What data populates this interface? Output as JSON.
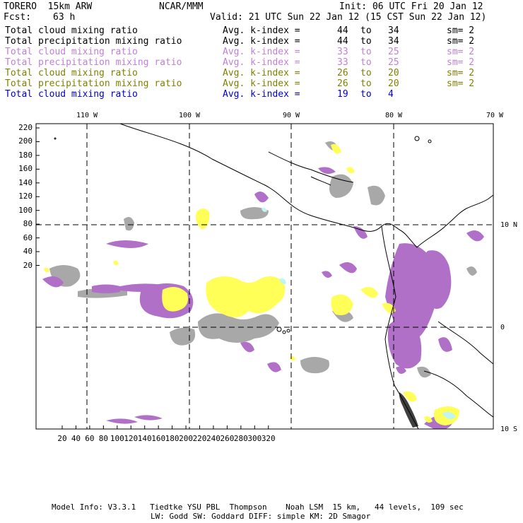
{
  "header": {
    "model": "TORERO  15km ARW",
    "org": "NCAR/MMM",
    "init": "Init: 06 UTC Fri 20 Jan 12",
    "fcst_label": "Fcst:",
    "fcst_value": "63 h",
    "valid": "Valid: 21 UTC Sun 22 Jan 12 (15 CST Sun 22 Jan 12)"
  },
  "legend": [
    {
      "field": "Total cloud mixing ratio",
      "stat": "Avg. k-index =",
      "from": "44",
      "to_word": "to",
      "to": "34",
      "sm": "sm= 2",
      "color": "#000000"
    },
    {
      "field": "Total precipitation mixing ratio",
      "stat": "Avg. k-index =",
      "from": "44",
      "to_word": "to",
      "to": "34",
      "sm": "sm= 2",
      "color": "#000000"
    },
    {
      "field": "Total cloud mixing ratio",
      "stat": "Avg. k-index =",
      "from": "33",
      "to_word": "to",
      "to": "25",
      "sm": "sm= 2",
      "color": "#c080d8"
    },
    {
      "field": "Total precipitation mixing ratio",
      "stat": "Avg. k-index =",
      "from": "33",
      "to_word": "to",
      "to": "25",
      "sm": "sm= 2",
      "color": "#c080d8"
    },
    {
      "field": "Total cloud mixing ratio",
      "stat": "Avg. k-index =",
      "from": "26",
      "to_word": "to",
      "to": "20",
      "sm": "sm= 2",
      "color": "#808000"
    },
    {
      "field": "Total precipitation mixing ratio",
      "stat": "Avg. k-index =",
      "from": "26",
      "to_word": "to",
      "to": "20",
      "sm": "sm= 2",
      "color": "#808000"
    },
    {
      "field": "Total cloud mixing ratio",
      "stat": "Avg. k-index =",
      "from": "19",
      "to_word": "to",
      "to": "4",
      "sm": "",
      "color": "#0000d0"
    }
  ],
  "map": {
    "lon_labels": [
      "110 W",
      "100 W",
      "90 W",
      "80 W",
      "70 W"
    ],
    "lat_labels": [
      "10 N",
      "0",
      "10 S"
    ],
    "y_ticks": [
      "220",
      "200",
      "180",
      "160",
      "140",
      "120",
      "100",
      "80",
      "60",
      "40",
      "20"
    ],
    "x_ticks": [
      "20",
      "40",
      "60",
      "80",
      "100",
      "120",
      "140",
      "160",
      "180",
      "200",
      "220",
      "240",
      "260",
      "280",
      "300",
      "320"
    ],
    "colors": {
      "grey": "#a8a8a8",
      "purple": "#b070c8",
      "yellow": "#ffff58",
      "cyan": "#bff5f5",
      "dark": "#404040"
    }
  },
  "footer": {
    "line1": "Model Info: V3.3.1   Tiedtke YSU PBL  Thompson    Noah LSM  15 km,   44 levels,  109 sec",
    "line2": "LW: Godd SW: Goddard DIFF: simple KM: 2D Smagor"
  }
}
